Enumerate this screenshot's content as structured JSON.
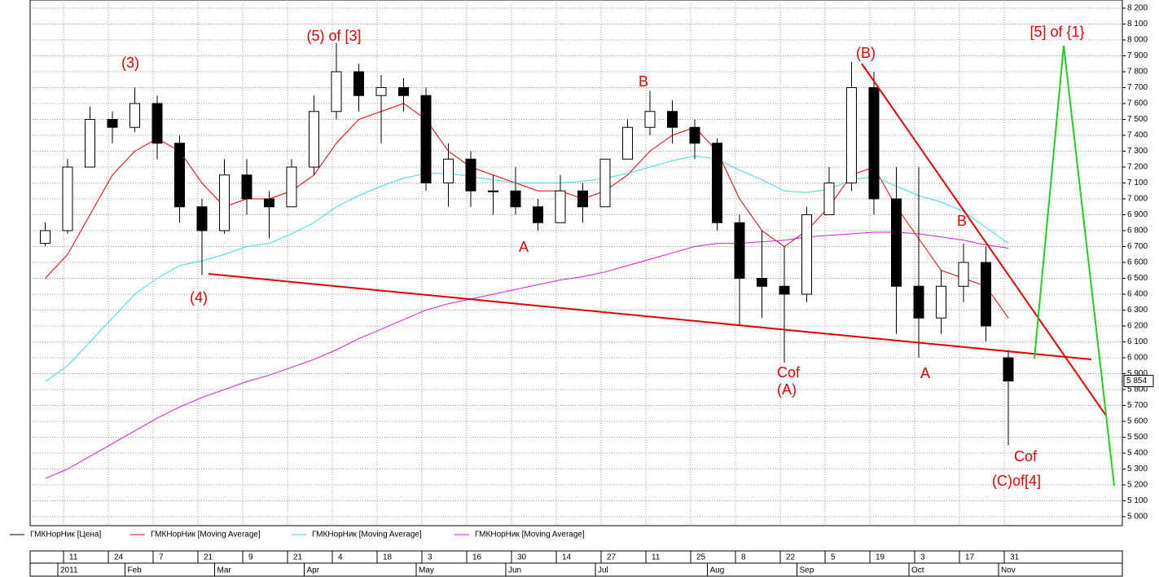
{
  "chart_data": {
    "type": "candlestick",
    "categories": [
      null,
      "11",
      null,
      "24",
      null,
      "7",
      null,
      "21",
      null,
      "9",
      null,
      "21",
      null,
      "4",
      null,
      "18",
      null,
      "3",
      null,
      "16",
      null,
      "30",
      null,
      "14",
      null,
      "27",
      null,
      "11",
      null,
      "25",
      null,
      "8",
      null,
      "22",
      null,
      "5",
      null,
      "19",
      null,
      "3",
      null,
      "17",
      null,
      "31"
    ],
    "month_labels": [
      null,
      "2011",
      null,
      null,
      "Feb",
      null,
      null,
      null,
      "Mar",
      null,
      null,
      null,
      "Apr",
      null,
      null,
      null,
      null,
      "May",
      null,
      null,
      null,
      "Jun",
      null,
      null,
      null,
      "Jul",
      null,
      null,
      null,
      null,
      "Aug",
      null,
      null,
      null,
      "Sep",
      null,
      null,
      null,
      null,
      "Oct",
      null,
      null,
      null,
      "Nov"
    ],
    "series": [
      {
        "name": "ГМКНорНик [Цена]",
        "color": "#000000",
        "open": [
          6720,
          6800,
          7200,
          7500,
          7450,
          7600,
          7350,
          6950,
          6800,
          7150,
          7000,
          6950,
          7200,
          7550,
          7800,
          7650,
          7700,
          7650,
          7100,
          7250,
          7050,
          7050,
          6950,
          6850,
          7050,
          6950,
          7250,
          7450,
          7550,
          7450,
          7350,
          6850,
          6500,
          6450,
          6400,
          6900,
          7100,
          7700,
          7000,
          6450,
          6250,
          6450,
          6600,
          6000
        ],
        "high": [
          6850,
          7250,
          7580,
          7550,
          7700,
          7650,
          7400,
          7000,
          7250,
          7250,
          7050,
          7250,
          7650,
          7980,
          7850,
          7780,
          7760,
          7700,
          7350,
          7300,
          7150,
          7200,
          7000,
          7150,
          7100,
          7250,
          7500,
          7680,
          7620,
          7500,
          7380,
          6900,
          6800,
          6700,
          6950,
          7200,
          7860,
          7800,
          7200,
          7200,
          6550,
          6720,
          6700,
          6050
        ],
        "low": [
          6700,
          6780,
          7200,
          7350,
          7420,
          7250,
          6850,
          6520,
          6780,
          6900,
          6750,
          6950,
          7150,
          7500,
          7550,
          7350,
          7550,
          7050,
          6950,
          6950,
          6900,
          6900,
          6800,
          6850,
          6850,
          6950,
          7250,
          7400,
          7350,
          7250,
          6800,
          6200,
          6250,
          5970,
          6350,
          6900,
          7050,
          6900,
          6150,
          6000,
          6150,
          6350,
          6100,
          5450
        ],
        "close": [
          6800,
          7200,
          7500,
          7450,
          7600,
          7350,
          6950,
          6800,
          7150,
          7000,
          6950,
          7200,
          7550,
          7800,
          7650,
          7700,
          7650,
          7100,
          7250,
          7050,
          7050,
          6950,
          6850,
          7050,
          6950,
          7250,
          7450,
          7550,
          7450,
          7350,
          6850,
          6500,
          6450,
          6400,
          6900,
          7100,
          7700,
          7000,
          6450,
          6250,
          6450,
          6600,
          6200,
          5854
        ]
      },
      {
        "name": "ГМКНорНик [Moving Average]",
        "color": "#e00000",
        "values": [
          6500,
          6650,
          6900,
          7150,
          7300,
          7380,
          7300,
          7100,
          6950,
          7000,
          7000,
          7050,
          7150,
          7350,
          7500,
          7550,
          7600,
          7500,
          7300,
          7200,
          7150,
          7100,
          7050,
          7050,
          7000,
          7050,
          7150,
          7300,
          7400,
          7450,
          7300,
          7000,
          6800,
          6700,
          6800,
          6950,
          7150,
          7200,
          6950,
          6750,
          6550,
          6500,
          6450,
          6250
        ]
      },
      {
        "name": "ГМКНорНик [Moving Average]",
        "color": "#40d8e0",
        "values": [
          5850,
          5950,
          6100,
          6250,
          6400,
          6500,
          6580,
          6610,
          6650,
          6700,
          6720,
          6780,
          6850,
          6950,
          7020,
          7080,
          7130,
          7160,
          7160,
          7140,
          7120,
          7100,
          7100,
          7100,
          7110,
          7130,
          7160,
          7200,
          7240,
          7270,
          7250,
          7180,
          7120,
          7050,
          7040,
          7060,
          7120,
          7140,
          7080,
          7020,
          6980,
          6920,
          6820,
          6720
        ]
      },
      {
        "name": "ГМКНорНик [Moving Average]",
        "color": "#d020d0",
        "values": [
          5240,
          5300,
          5380,
          5460,
          5540,
          5620,
          5690,
          5750,
          5800,
          5850,
          5890,
          5940,
          5990,
          6050,
          6120,
          6180,
          6240,
          6300,
          6340,
          6370,
          6400,
          6430,
          6460,
          6490,
          6510,
          6540,
          6580,
          6620,
          6660,
          6700,
          6720,
          6720,
          6730,
          6740,
          6760,
          6770,
          6780,
          6790,
          6790,
          6780,
          6760,
          6740,
          6710,
          6690
        ]
      }
    ],
    "last_price": {
      "value": 5854,
      "label": "5 854"
    },
    "ylim": [
      5000,
      8200
    ],
    "yticks": [
      {
        "value": 5000,
        "label": "5 000"
      },
      {
        "value": 5100,
        "label": "5 100"
      },
      {
        "value": 5200,
        "label": "5 200"
      },
      {
        "value": 5300,
        "label": "5 300"
      },
      {
        "value": 5400,
        "label": "5 400"
      },
      {
        "value": 5500,
        "label": "5 500"
      },
      {
        "value": 5600,
        "label": "5 600"
      },
      {
        "value": 5700,
        "label": "5 700"
      },
      {
        "value": 5800,
        "label": "5 800"
      },
      {
        "value": 5900,
        "label": "5 900"
      },
      {
        "value": 6000,
        "label": "6 000"
      },
      {
        "value": 6100,
        "label": "6 100"
      },
      {
        "value": 6200,
        "label": "6 200"
      },
      {
        "value": 6300,
        "label": "6 300"
      },
      {
        "value": 6400,
        "label": "6 400"
      },
      {
        "value": 6500,
        "label": "6 500"
      },
      {
        "value": 6600,
        "label": "6 600"
      },
      {
        "value": 6700,
        "label": "6 700"
      },
      {
        "value": 6800,
        "label": "6 800"
      },
      {
        "value": 6900,
        "label": "6 900"
      },
      {
        "value": 7000,
        "label": "7 000"
      },
      {
        "value": 7100,
        "label": "7 100"
      },
      {
        "value": 7200,
        "label": "7 200"
      },
      {
        "value": 7300,
        "label": "7 300"
      },
      {
        "value": 7400,
        "label": "7 400"
      },
      {
        "value": 7500,
        "label": "7 500"
      },
      {
        "value": 7600,
        "label": "7 600"
      },
      {
        "value": 7700,
        "label": "7 700"
      },
      {
        "value": 7800,
        "label": "7 800"
      },
      {
        "value": 7900,
        "label": "7 900"
      },
      {
        "value": 8000,
        "label": "8 000"
      },
      {
        "value": 8100,
        "label": "8 100"
      },
      {
        "value": 8200,
        "label": "8 200"
      }
    ],
    "grid": true,
    "annotation_color": "#e00000",
    "annotations": [
      "(3)",
      "(5) of [3]",
      "(4)",
      "B",
      "A",
      "(B)",
      "Cof",
      "(A)",
      "A",
      "B",
      "Cof",
      "(C)of[4]",
      "[5] of {1}"
    ]
  }
}
